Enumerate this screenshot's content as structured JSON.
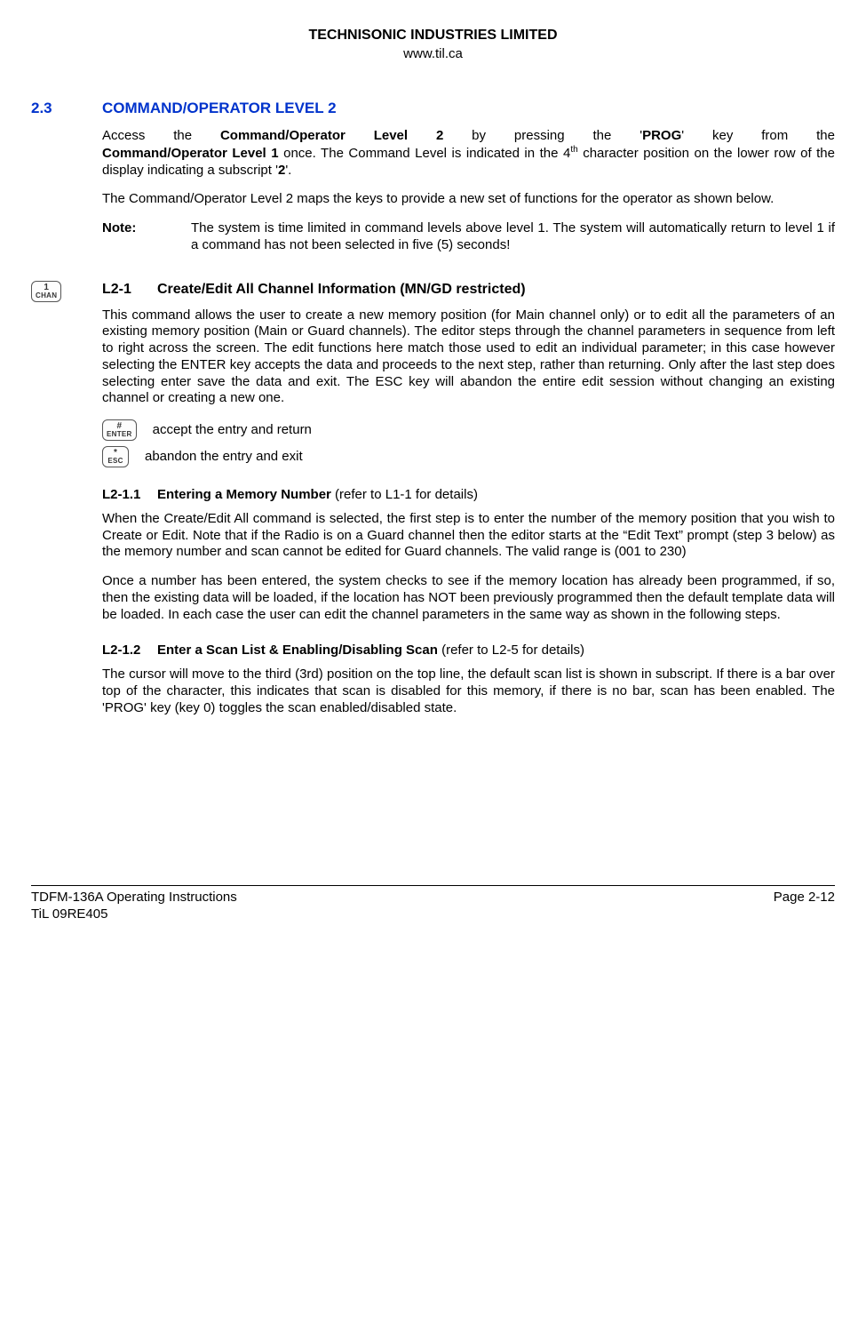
{
  "header": {
    "company": "TECHNISONIC INDUSTRIES LIMITED",
    "url": "www.til.ca"
  },
  "section": {
    "num": "2.3",
    "title": "COMMAND/OPERATOR LEVEL 2",
    "p1_a": "Access the ",
    "p1_b": "Command/Operator Level 2",
    "p1_c": " by pressing the '",
    "p1_d": "PROG",
    "p1_e": "' key from the ",
    "p1_f": "Command/Operator Level 1",
    "p1_g": " once. The Command Level is indicated in the 4",
    "p1_h": "th",
    "p1_i": " character position on the lower row of the display indicating a subscript '",
    "p1_j": "2",
    "p1_k": "'.",
    "p2": "The Command/Operator Level 2 maps the keys to provide a new set of functions for the operator as shown below.",
    "note_label": "Note:",
    "note_text": "The system is time limited in command levels above level 1. The system will automatically return to level 1 if a command has not been selected in five (5) seconds!"
  },
  "l2_1": {
    "key_top": "1",
    "key_bot": "CHAN",
    "num": "L2-1",
    "title": "Create/Edit All Channel Information (MN/GD restricted)",
    "p1": "This command allows the user to create a new memory position (for Main channel only) or to edit all the parameters of an existing memory position (Main or Guard channels). The editor steps through the channel parameters in sequence from left to right across the screen.  The edit functions here match those used to edit an individual parameter; in this case however selecting the ENTER key accepts the data and proceeds to the next step, rather than returning. Only after the last step does selecting enter save the data and exit. The ESC key will abandon the entire edit session without changing an existing channel or creating a new one.",
    "enter_top": "#",
    "enter_bot": "ENTER",
    "enter_text": "accept the entry and return",
    "esc_top": "*",
    "esc_bot": "ESC",
    "esc_text": "abandon the entry and exit"
  },
  "l2_1_1": {
    "num": "L2-1.1",
    "title": "Entering a Memory Number",
    "ref": " (refer to L1-1 for details)",
    "p1": "When the Create/Edit All command is selected, the first step is to enter the number of the memory position that you wish to Create or Edit. Note that if the Radio is on a Guard channel then the editor starts at the “Edit Text” prompt (step 3 below) as the memory number and scan cannot be edited for Guard channels. The valid range is (001 to 230)",
    "p2": "Once a number has been entered, the system checks to see if the memory location has already been programmed, if so, then the existing data will be loaded, if the location has NOT been previously programmed then the default template data will be loaded. In each case the user can edit the channel parameters in the same way as shown in the following steps."
  },
  "l2_1_2": {
    "num": "L2-1.2",
    "title": "Enter a Scan List & Enabling/Disabling Scan",
    "ref": " (refer to L2-5 for details)",
    "p1": "The cursor will move to the third (3rd) position on the top line, the default scan list is shown in subscript. If there is a bar over top of the character, this indicates that scan is disabled for this memory, if there is no bar, scan has been enabled. The 'PROG' key (key 0) toggles the scan enabled/disabled state."
  },
  "footer": {
    "left1": "TDFM-136A    Operating Instructions",
    "left2": "TiL 09RE405",
    "right": "Page 2-12"
  }
}
